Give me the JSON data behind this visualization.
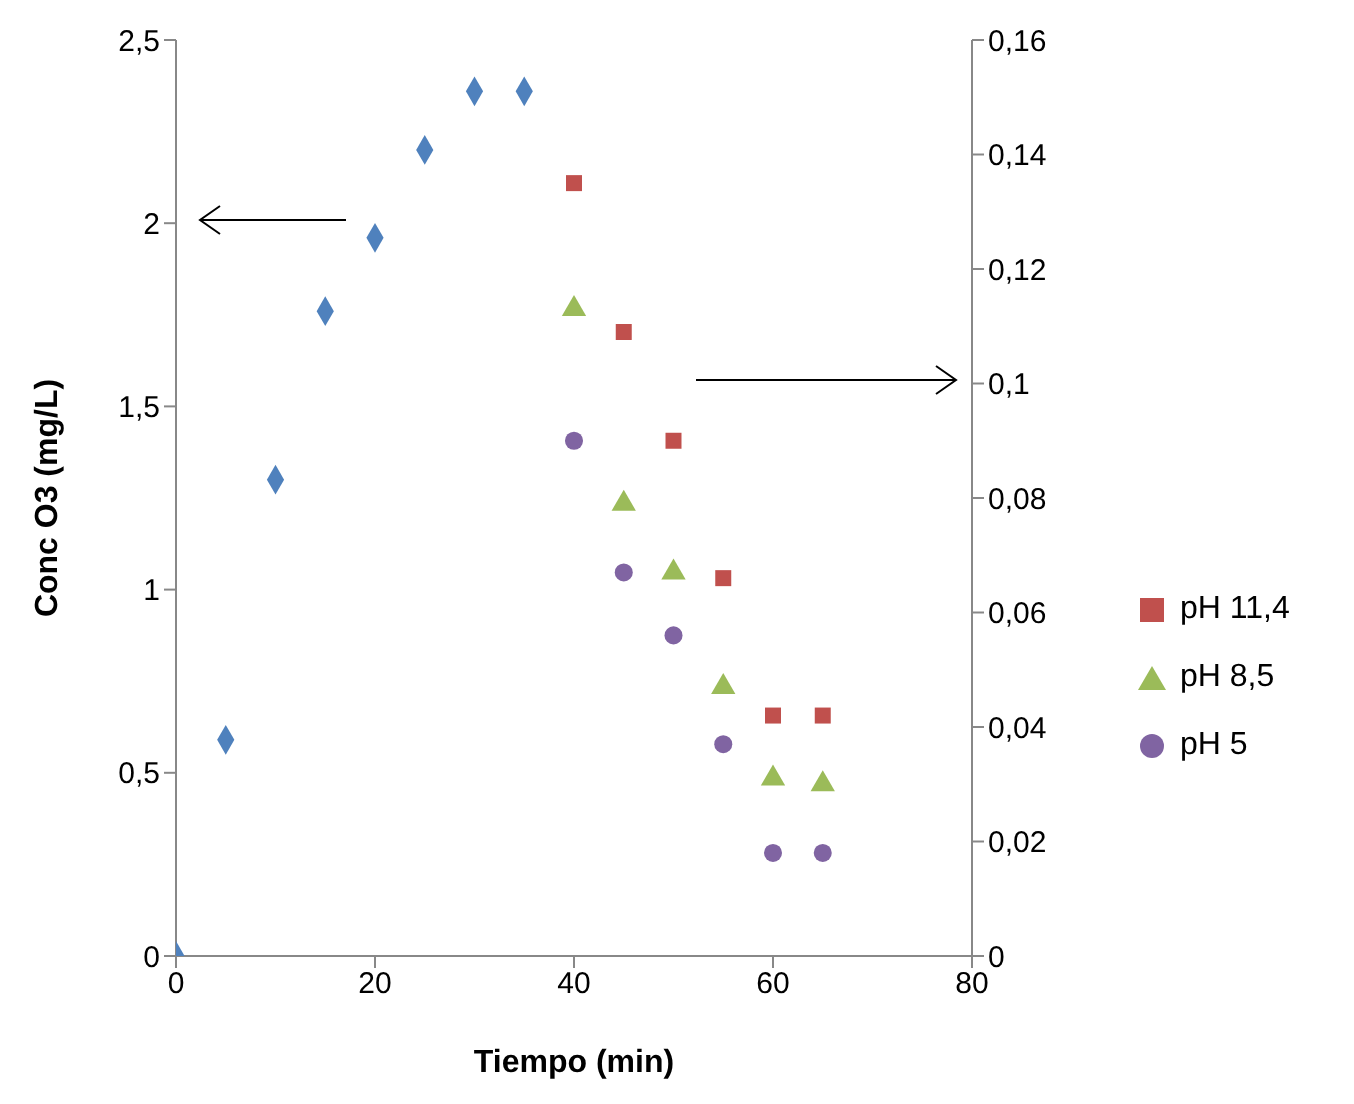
{
  "chart_data": {
    "type": "scatter",
    "xlabel": "Tiempo (min)",
    "ylabel": "Conc O3 (mg/L)",
    "xlim": [
      0,
      80
    ],
    "xticks": [
      0,
      20,
      40,
      60,
      80
    ],
    "ylim": [
      0,
      2.5
    ],
    "yticks": [
      0,
      {
        "value": 0.5,
        "label": "0,5"
      },
      1,
      {
        "value": 1.5,
        "label": "1,5"
      },
      2,
      {
        "value": 2.5,
        "label": "2,5"
      }
    ],
    "y2lim": [
      0,
      0.16
    ],
    "y2ticks": [
      0,
      {
        "value": 0.02,
        "label": "0,02"
      },
      {
        "value": 0.04,
        "label": "0,04"
      },
      {
        "value": 0.06,
        "label": "0,06"
      },
      {
        "value": 0.08,
        "label": "0,08"
      },
      {
        "value": 0.1,
        "label": "0,1"
      },
      {
        "value": 0.12,
        "label": "0,12"
      },
      {
        "value": 0.14,
        "label": "0,14"
      },
      {
        "value": 0.16,
        "label": "0,16"
      }
    ],
    "grid": false,
    "legend": "right",
    "series": [
      {
        "color": "#4f81bd",
        "marker": "diamond",
        "x": [
          0,
          5,
          10,
          15,
          20,
          25,
          30,
          35
        ],
        "values": [
          0,
          0.59,
          1.3,
          1.76,
          1.96,
          2.2,
          2.36,
          2.36
        ]
      },
      {
        "name": "pH 11,4",
        "color": "#c0504d",
        "marker": "square",
        "axis": "y2",
        "x": [
          40,
          45,
          50,
          55,
          60,
          65
        ],
        "values": [
          0.135,
          0.109,
          0.09,
          0.066,
          0.042,
          0.042
        ]
      },
      {
        "name": "pH 8,5",
        "color": "#9bbb59",
        "marker": "triangle",
        "axis": "y2",
        "x": [
          40,
          45,
          50,
          55,
          60,
          65
        ],
        "values": [
          0.113,
          0.079,
          0.067,
          0.047,
          0.031,
          0.03
        ]
      },
      {
        "name": "pH 5",
        "color": "#8064a2",
        "marker": "circle",
        "axis": "y2",
        "x": [
          40,
          45,
          50,
          55,
          60,
          65
        ],
        "values": [
          0.09,
          0.067,
          0.056,
          0.037,
          0.018,
          0.018
        ]
      }
    ]
  }
}
